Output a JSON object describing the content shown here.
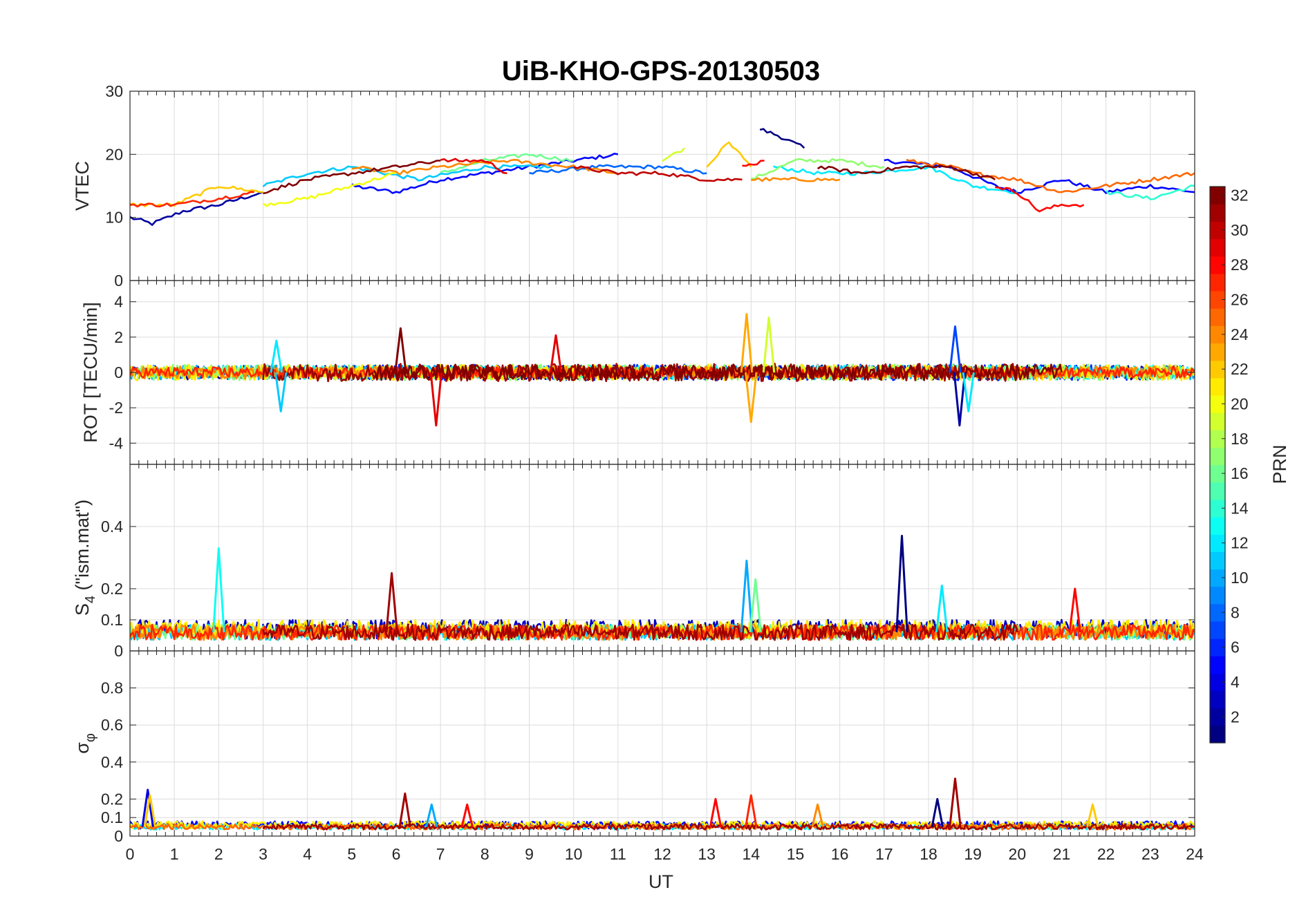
{
  "chart_data": {
    "type": "line",
    "title": "UiB-KHO-GPS-20130503",
    "xlabel": "UT",
    "xlim": [
      0,
      24
    ],
    "x_ticks": [
      "0",
      "1",
      "2",
      "3",
      "4",
      "5",
      "6",
      "7",
      "8",
      "9",
      "10",
      "11",
      "12",
      "13",
      "14",
      "15",
      "16",
      "17",
      "18",
      "19",
      "20",
      "21",
      "22",
      "23",
      "24"
    ],
    "color_by": "satellite PRN (jet colormap)",
    "colorbar": {
      "label": "PRN",
      "range": [
        1,
        32
      ],
      "ticks": [
        "2",
        "4",
        "6",
        "8",
        "10",
        "12",
        "14",
        "16",
        "18",
        "20",
        "22",
        "24",
        "26",
        "28",
        "30",
        "32"
      ]
    },
    "panels": [
      {
        "id": "vtec",
        "ylabel": "VTEC",
        "ylim": [
          0,
          30
        ],
        "y_ticks": [
          "0",
          "10",
          "20",
          "30"
        ],
        "series": [
          {
            "prn": 2,
            "x": [
              0.0,
              0.5,
              1.2,
              2.0,
              3.0
            ],
            "y": [
              10,
              9,
              11,
              12,
              14
            ]
          },
          {
            "prn": 5,
            "x": [
              5.0,
              6.0,
              7.0,
              8.0,
              9.0,
              10.0,
              11.0
            ],
            "y": [
              15,
              14,
              16,
              17,
              18,
              19,
              20
            ]
          },
          {
            "prn": 1,
            "x": [
              14.2,
              14.6,
              15.2
            ],
            "y": [
              24,
              23,
              21
            ]
          },
          {
            "prn": 5,
            "x": [
              17.0,
              18.5,
              19.5,
              20.0,
              21.0,
              22.0,
              23.0,
              24.0
            ],
            "y": [
              19,
              18,
              15,
              14,
              16,
              14,
              15,
              14
            ]
          },
          {
            "prn": 8,
            "x": [
              9.0,
              10.5,
              12.0,
              13.0
            ],
            "y": [
              17,
              18,
              18,
              17
            ]
          },
          {
            "prn": 11,
            "x": [
              3.0,
              4.0,
              5.0,
              6.5,
              8.0,
              9.5
            ],
            "y": [
              15,
              17,
              18,
              16,
              18,
              18
            ]
          },
          {
            "prn": 12,
            "x": [
              14.5,
              15.5,
              16.5,
              18.0,
              19.0,
              20.0
            ],
            "y": [
              18,
              17,
              17,
              18,
              15,
              14
            ]
          },
          {
            "prn": 14,
            "x": [
              22.0,
              23.0,
              24.0
            ],
            "y": [
              14,
              13,
              15
            ]
          },
          {
            "prn": 16,
            "x": [
              7.0,
              8.0,
              9.0,
              10.0
            ],
            "y": [
              17,
              19,
              20,
              19
            ]
          },
          {
            "prn": 17,
            "x": [
              14.0,
              15.0,
              16.0,
              17.0
            ],
            "y": [
              16,
              19,
              19,
              18
            ]
          },
          {
            "prn": 19,
            "x": [
              12.0,
              12.5
            ],
            "y": [
              19,
              21
            ]
          },
          {
            "prn": 20,
            "x": [
              3.0,
              4.0,
              5.0,
              6.0
            ],
            "y": [
              12,
              13,
              15,
              17
            ]
          },
          {
            "prn": 22,
            "x": [
              0.0,
              1.0,
              2.0,
              3.0
            ],
            "y": [
              12,
              12,
              15,
              14
            ]
          },
          {
            "prn": 22,
            "x": [
              13.0,
              13.5,
              14.0
            ],
            "y": [
              18,
              22,
              18
            ]
          },
          {
            "prn": 24,
            "x": [
              5.0,
              6.0,
              7.0,
              8.5,
              10.0,
              11.0
            ],
            "y": [
              18,
              17,
              18,
              19,
              18,
              17
            ]
          },
          {
            "prn": 24,
            "x": [
              14.0,
              15.0,
              16.0
            ],
            "y": [
              16,
              16,
              16
            ]
          },
          {
            "prn": 25,
            "x": [
              17.5,
              18.5,
              19.0,
              20.0,
              21.0,
              22.0,
              23.0,
              24.0
            ],
            "y": [
              19,
              18,
              17,
              16,
              14,
              15,
              16,
              17
            ]
          },
          {
            "prn": 27,
            "x": [
              0.0,
              1.0,
              2.0,
              2.8
            ],
            "y": [
              12,
              12,
              13,
              14
            ]
          },
          {
            "prn": 28,
            "x": [
              13.8,
              14.3
            ],
            "y": [
              18,
              19
            ]
          },
          {
            "prn": 28,
            "x": [
              19.5,
              20.0,
              20.5,
              21.0,
              21.5
            ],
            "y": [
              15,
              14,
              11,
              12,
              12
            ]
          },
          {
            "prn": 29,
            "x": [
              7.0,
              8.0,
              8.5
            ],
            "y": [
              19,
              19,
              17
            ]
          },
          {
            "prn": 30,
            "x": [
              10.0,
              11.0,
              12.0,
              13.0,
              13.8
            ],
            "y": [
              18,
              17,
              17,
              16,
              16
            ]
          },
          {
            "prn": 32,
            "x": [
              3.0,
              4.0,
              5.0,
              6.0,
              7.0
            ],
            "y": [
              14,
              16,
              17,
              18,
              19
            ]
          },
          {
            "prn": 32,
            "x": [
              15.5,
              16.5,
              17.5,
              18.5,
              19.5
            ],
            "y": [
              18,
              17,
              18,
              18,
              16
            ]
          }
        ]
      },
      {
        "id": "rot",
        "ylabel": "ROT [TECU/min]",
        "ylim": [
          -5.2,
          5.2
        ],
        "y_ticks": [
          "-4",
          "-2",
          "0",
          "2",
          "4"
        ],
        "series": [
          {
            "prn": 2,
            "x": [
              0.0,
              24.0
            ],
            "y": [
              0,
              0
            ],
            "noise": 0.4
          },
          {
            "prn": 6,
            "x": [
              4.5,
              8.0,
              16.5,
              22.5
            ],
            "y": [
              0,
              0,
              0,
              0
            ],
            "noise": 0.45
          },
          {
            "prn": 10,
            "x": [
              0.0,
              24.0
            ],
            "y": [
              0,
              0
            ],
            "noise": 0.4
          },
          {
            "prn": 13,
            "x": [
              2.0,
              12.0,
              18.0,
              24.0
            ],
            "y": [
              0,
              0,
              0,
              0
            ],
            "noise": 0.4
          },
          {
            "prn": 17,
            "x": [
              0.0,
              24.0
            ],
            "y": [
              0,
              0
            ],
            "noise": 0.45
          },
          {
            "prn": 21,
            "x": [
              0.0,
              24.0
            ],
            "y": [
              0,
              0
            ],
            "noise": 0.45
          },
          {
            "prn": 24,
            "x": [
              0.0,
              24.0
            ],
            "y": [
              0,
              0
            ],
            "noise": 0.35
          },
          {
            "prn": 27,
            "x": [
              0.0,
              24.0
            ],
            "y": [
              0,
              0
            ],
            "noise": 0.3
          },
          {
            "prn": 31,
            "x": [
              3.0,
              14.0,
              20.0
            ],
            "y": [
              0,
              0,
              0
            ],
            "noise": 0.5
          },
          {
            "prn": 32,
            "x": [
              5.5,
              10.0,
              16.0,
              21.0
            ],
            "y": [
              0,
              0,
              0,
              0
            ],
            "noise": 0.45
          }
        ],
        "spikes": [
          {
            "prn": 29,
            "x": 6.9,
            "y": -3.0
          },
          {
            "prn": 32,
            "x": 6.1,
            "y": 2.5
          },
          {
            "prn": 29,
            "x": 9.6,
            "y": 2.1
          },
          {
            "prn": 11,
            "x": 3.4,
            "y": -2.2
          },
          {
            "prn": 12,
            "x": 3.3,
            "y": 1.8
          },
          {
            "prn": 23,
            "x": 13.9,
            "y": 3.3
          },
          {
            "prn": 23,
            "x": 14.0,
            "y": -2.8
          },
          {
            "prn": 19,
            "x": 14.4,
            "y": 3.1
          },
          {
            "prn": 7,
            "x": 18.6,
            "y": 2.6
          },
          {
            "prn": 2,
            "x": 18.7,
            "y": -3.0
          },
          {
            "prn": 12,
            "x": 18.9,
            "y": -2.2
          }
        ]
      },
      {
        "id": "s4",
        "ylabel": "S_4 (\"ism.mat\")",
        "ylim": [
          0,
          0.6
        ],
        "y_ticks": [
          "0",
          "0.1",
          "0.2",
          "0.4"
        ],
        "series": [
          {
            "prn": 3,
            "x": [
              0.0,
              24.0
            ],
            "y": [
              0.07,
              0.07
            ],
            "noise": 0.03
          },
          {
            "prn": 11,
            "x": [
              0.0,
              24.0
            ],
            "y": [
              0.06,
              0.06
            ],
            "noise": 0.025
          },
          {
            "prn": 16,
            "x": [
              0.0,
              24.0
            ],
            "y": [
              0.06,
              0.06
            ],
            "noise": 0.025
          },
          {
            "prn": 21,
            "x": [
              0.0,
              24.0
            ],
            "y": [
              0.07,
              0.07
            ],
            "noise": 0.03
          },
          {
            "prn": 24,
            "x": [
              0.0,
              24.0
            ],
            "y": [
              0.06,
              0.06
            ],
            "noise": 0.025
          },
          {
            "prn": 27,
            "x": [
              0.0,
              24.0
            ],
            "y": [
              0.06,
              0.06
            ],
            "noise": 0.025
          },
          {
            "prn": 31,
            "x": [
              3.0,
              7.0,
              16.0,
              20.0
            ],
            "y": [
              0.06,
              0.06,
              0.06,
              0.06
            ],
            "noise": 0.025
          }
        ],
        "spikes": [
          {
            "prn": 13,
            "x": 2.0,
            "y": 0.33
          },
          {
            "prn": 31,
            "x": 5.9,
            "y": 0.25
          },
          {
            "prn": 10,
            "x": 13.9,
            "y": 0.29
          },
          {
            "prn": 16,
            "x": 14.1,
            "y": 0.23
          },
          {
            "prn": 1,
            "x": 17.4,
            "y": 0.37
          },
          {
            "prn": 12,
            "x": 18.3,
            "y": 0.21
          },
          {
            "prn": 28,
            "x": 21.3,
            "y": 0.2
          }
        ]
      },
      {
        "id": "sigma_phi",
        "ylabel": "σ_φ",
        "ylim": [
          0,
          1.0
        ],
        "y_ticks": [
          "0",
          "0.1",
          "0.2",
          "0.4",
          "0.6",
          "0.8"
        ],
        "series": [
          {
            "prn": 5,
            "x": [
              0.0,
              24.0
            ],
            "y": [
              0.06,
              0.06
            ],
            "noise": 0.02
          },
          {
            "prn": 12,
            "x": [
              0.0,
              24.0
            ],
            "y": [
              0.05,
              0.05
            ],
            "noise": 0.015
          },
          {
            "prn": 21,
            "x": [
              0.0,
              24.0
            ],
            "y": [
              0.06,
              0.06
            ],
            "noise": 0.02
          },
          {
            "prn": 25,
            "x": [
              0.0,
              24.0
            ],
            "y": [
              0.05,
              0.05
            ],
            "noise": 0.015
          },
          {
            "prn": 31,
            "x": [
              3.0,
              24.0
            ],
            "y": [
              0.05,
              0.05
            ],
            "noise": 0.015
          }
        ],
        "spikes": [
          {
            "prn": 4,
            "x": 0.4,
            "y": 0.25
          },
          {
            "prn": 22,
            "x": 0.45,
            "y": 0.22
          },
          {
            "prn": 31,
            "x": 6.2,
            "y": 0.23
          },
          {
            "prn": 10,
            "x": 6.8,
            "y": 0.17
          },
          {
            "prn": 28,
            "x": 7.6,
            "y": 0.17
          },
          {
            "prn": 28,
            "x": 13.2,
            "y": 0.2
          },
          {
            "prn": 27,
            "x": 14.0,
            "y": 0.22
          },
          {
            "prn": 24,
            "x": 15.5,
            "y": 0.17
          },
          {
            "prn": 1,
            "x": 18.2,
            "y": 0.2
          },
          {
            "prn": 31,
            "x": 18.6,
            "y": 0.31
          },
          {
            "prn": 22,
            "x": 21.7,
            "y": 0.17
          }
        ]
      }
    ]
  }
}
